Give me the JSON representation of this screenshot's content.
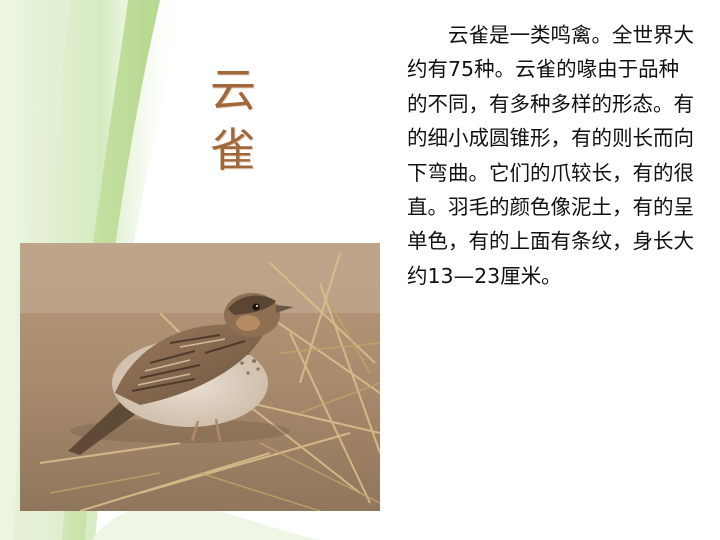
{
  "slide": {
    "title_chars": [
      "云",
      "雀"
    ],
    "body": "　　云雀是一类鸣禽。全世界大约有75种。云雀的喙由于品种的不同，有多种多样的形态。有的细小成圆锥形，有的则长而向下弯曲。它们的爪较长，有的很直。羽毛的颜色像泥土，有的呈单色，有的上面有条纹，身长大约13—23厘米。"
  },
  "colors": {
    "title": "#a0683a",
    "text": "#111111",
    "accent_green": "#b9d98e"
  },
  "icons": {
    "photo": "skylark-photo"
  }
}
